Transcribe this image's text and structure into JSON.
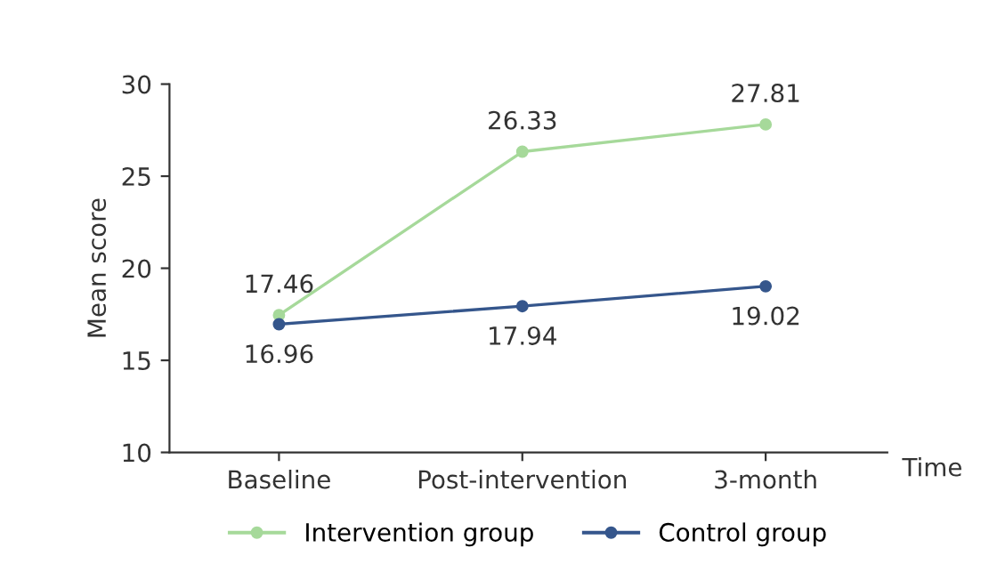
{
  "chart_data": {
    "type": "line",
    "xlabel": "Time",
    "ylabel": "Mean score",
    "categories": [
      "Baseline",
      "Post-intervention",
      "3-month"
    ],
    "series": [
      {
        "name": "Intervention group",
        "color": "#a6d99a",
        "values": [
          17.46,
          26.33,
          27.81
        ]
      },
      {
        "name": "Control group",
        "color": "#35568c",
        "values": [
          16.96,
          17.94,
          19.02
        ]
      }
    ],
    "ylim": [
      10,
      30
    ],
    "yticks": [
      10,
      15,
      20,
      25,
      30
    ],
    "grid": false,
    "legend": "bottom",
    "marker": "circle",
    "line_style": "solid",
    "data_labels": true
  }
}
